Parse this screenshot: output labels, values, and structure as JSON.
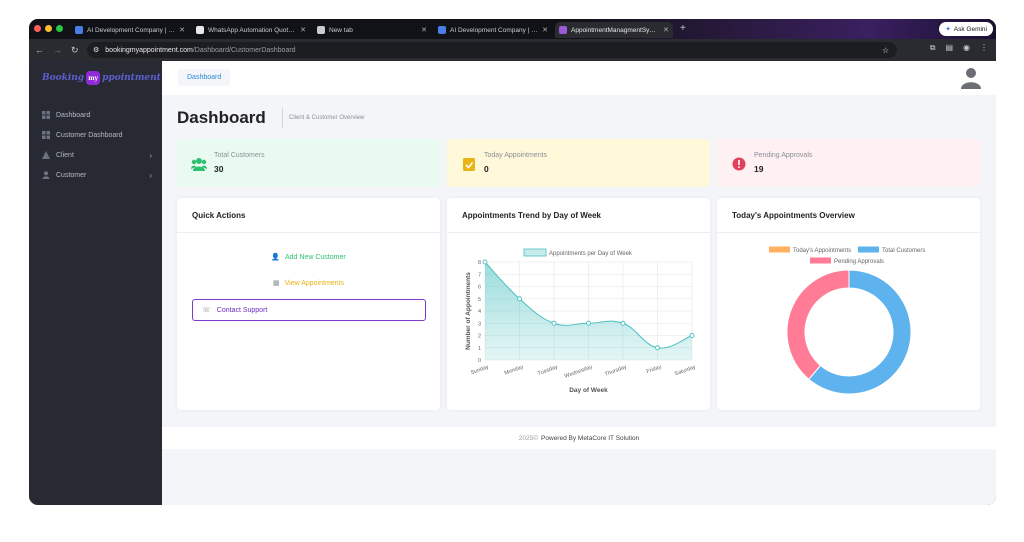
{
  "browser": {
    "tabs": [
      {
        "title": "AI Development Company | O...",
        "fav_color": "#4a7de8"
      },
      {
        "title": "WhatsApp Automation Quota...",
        "fav_color": "#e8e8e8"
      },
      {
        "title": "New tab",
        "fav_color": "#c9cbd1"
      },
      {
        "title": "AI Development Company | O...",
        "fav_color": "#4a7de8"
      },
      {
        "title": "AppointmentManagmentSyste...",
        "fav_color": "#9b5bd9",
        "active": true
      }
    ],
    "new_tab": "+",
    "ask_gemini": "Ask Gemini",
    "url_host": "bookingmyappointment.com",
    "url_path": "/Dashboard/CustomerDashboard"
  },
  "sidebar": {
    "logo_left": "Booking",
    "logo_mark": "my",
    "logo_right": "ppointment",
    "items": [
      {
        "label": "Dashboard",
        "icon": "grid-icon"
      },
      {
        "label": "Customer Dashboard",
        "icon": "grid-icon"
      },
      {
        "label": "Client",
        "icon": "triangle-icon",
        "has_arrow": true
      },
      {
        "label": "Customer",
        "icon": "user-icon",
        "has_arrow": true
      }
    ],
    "arrow": "›"
  },
  "header": {
    "breadcrumb": "Dashboard",
    "page_title": "Dashboard",
    "subtitle": "Client & Customer Overview"
  },
  "stats": [
    {
      "label": "Total Customers",
      "value": "30",
      "bg": "#e9fbf0",
      "color": "#2fbf71",
      "icon": "users-icon"
    },
    {
      "label": "Today Appointments",
      "value": "0",
      "bg": "#fff8d9",
      "color": "#e8b416",
      "icon": "calendar-check-icon"
    },
    {
      "label": "Pending Approvals",
      "value": "19",
      "bg": "#fff0f2",
      "color": "#e0425d",
      "icon": "alert-icon"
    }
  ],
  "quick_actions": {
    "title": "Quick Actions",
    "add_customer": "Add New Customer",
    "view_appointments": "View Appointments",
    "contact_support": "Contact Support"
  },
  "trend_card": {
    "title": "Appointments Trend by Day of Week"
  },
  "overview_card": {
    "title": "Today's Appointments Overview"
  },
  "footer": {
    "year": "2025©",
    "powered": "Powered By MetaCore IT Solution"
  },
  "chart_data": [
    {
      "type": "area",
      "legend": [
        "Appointments per Day of Week"
      ],
      "categories": [
        "Sunday",
        "Monday",
        "Tuesday",
        "Wednesday",
        "Thursday",
        "Friday",
        "Saturday"
      ],
      "series": [
        {
          "name": "Appointments per Day of Week",
          "values": [
            8,
            5,
            3,
            3,
            3,
            1,
            2
          ],
          "color": "#4bc0c0"
        }
      ],
      "xlabel": "Day of Week",
      "ylabel": "Number of Appointments",
      "ylim": [
        0,
        8
      ],
      "yticks": [
        0,
        1,
        2,
        3,
        4,
        5,
        6,
        7,
        8
      ],
      "grid": true,
      "legend_position": "top"
    },
    {
      "type": "pie",
      "donut": true,
      "labels": [
        "Today's Appointments",
        "Total Customers",
        "Pending Approvals"
      ],
      "values": [
        0,
        30,
        19
      ],
      "colors": [
        "#ffb060",
        "#5eb2ed",
        "#ff7b96"
      ],
      "legend_position": "top"
    }
  ]
}
